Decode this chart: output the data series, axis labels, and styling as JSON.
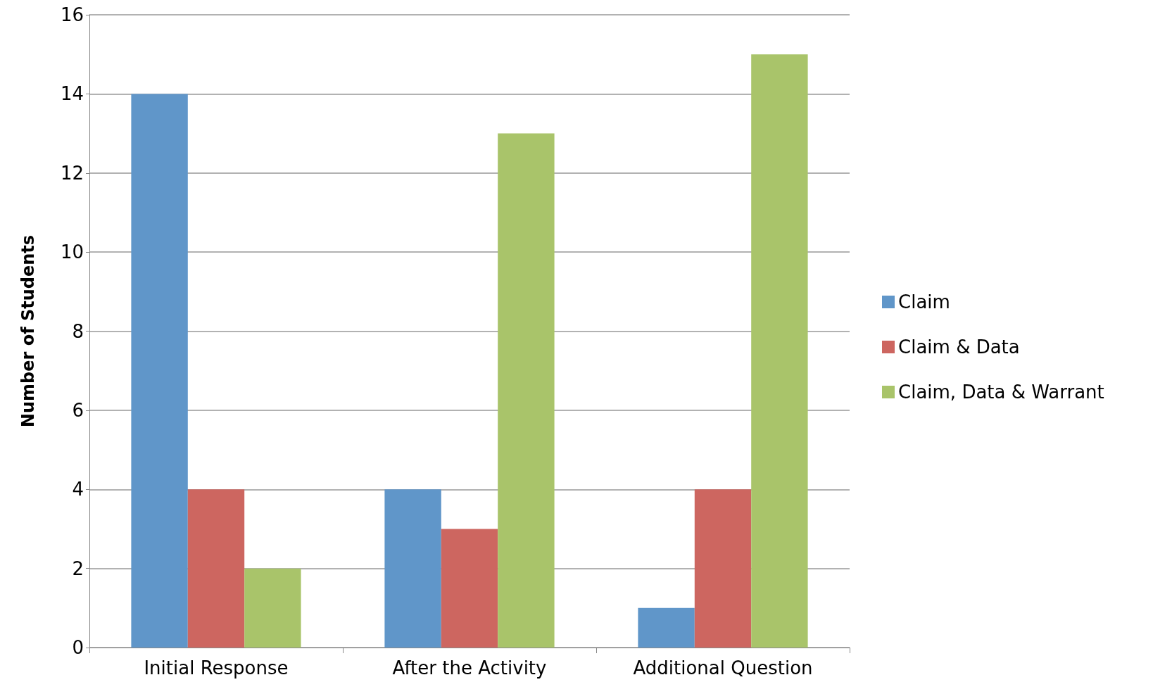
{
  "chart_data": {
    "type": "bar",
    "ylabel": "Number of Students",
    "categories": [
      "Initial Response",
      "After the Activity",
      "Additional Question"
    ],
    "series": [
      {
        "name": "Claim",
        "color": "#6096c9",
        "values": [
          14,
          4,
          1
        ]
      },
      {
        "name": "Claim & Data",
        "color": "#cd6660",
        "values": [
          4,
          3,
          4
        ]
      },
      {
        "name": "Claim, Data & Warrant",
        "color": "#a9c46a",
        "values": [
          2,
          13,
          15
        ]
      }
    ],
    "ylim": [
      0,
      16
    ],
    "yticks": [
      0,
      2,
      4,
      6,
      8,
      10,
      12,
      14,
      16
    ],
    "grid": "y",
    "legend": "right"
  }
}
